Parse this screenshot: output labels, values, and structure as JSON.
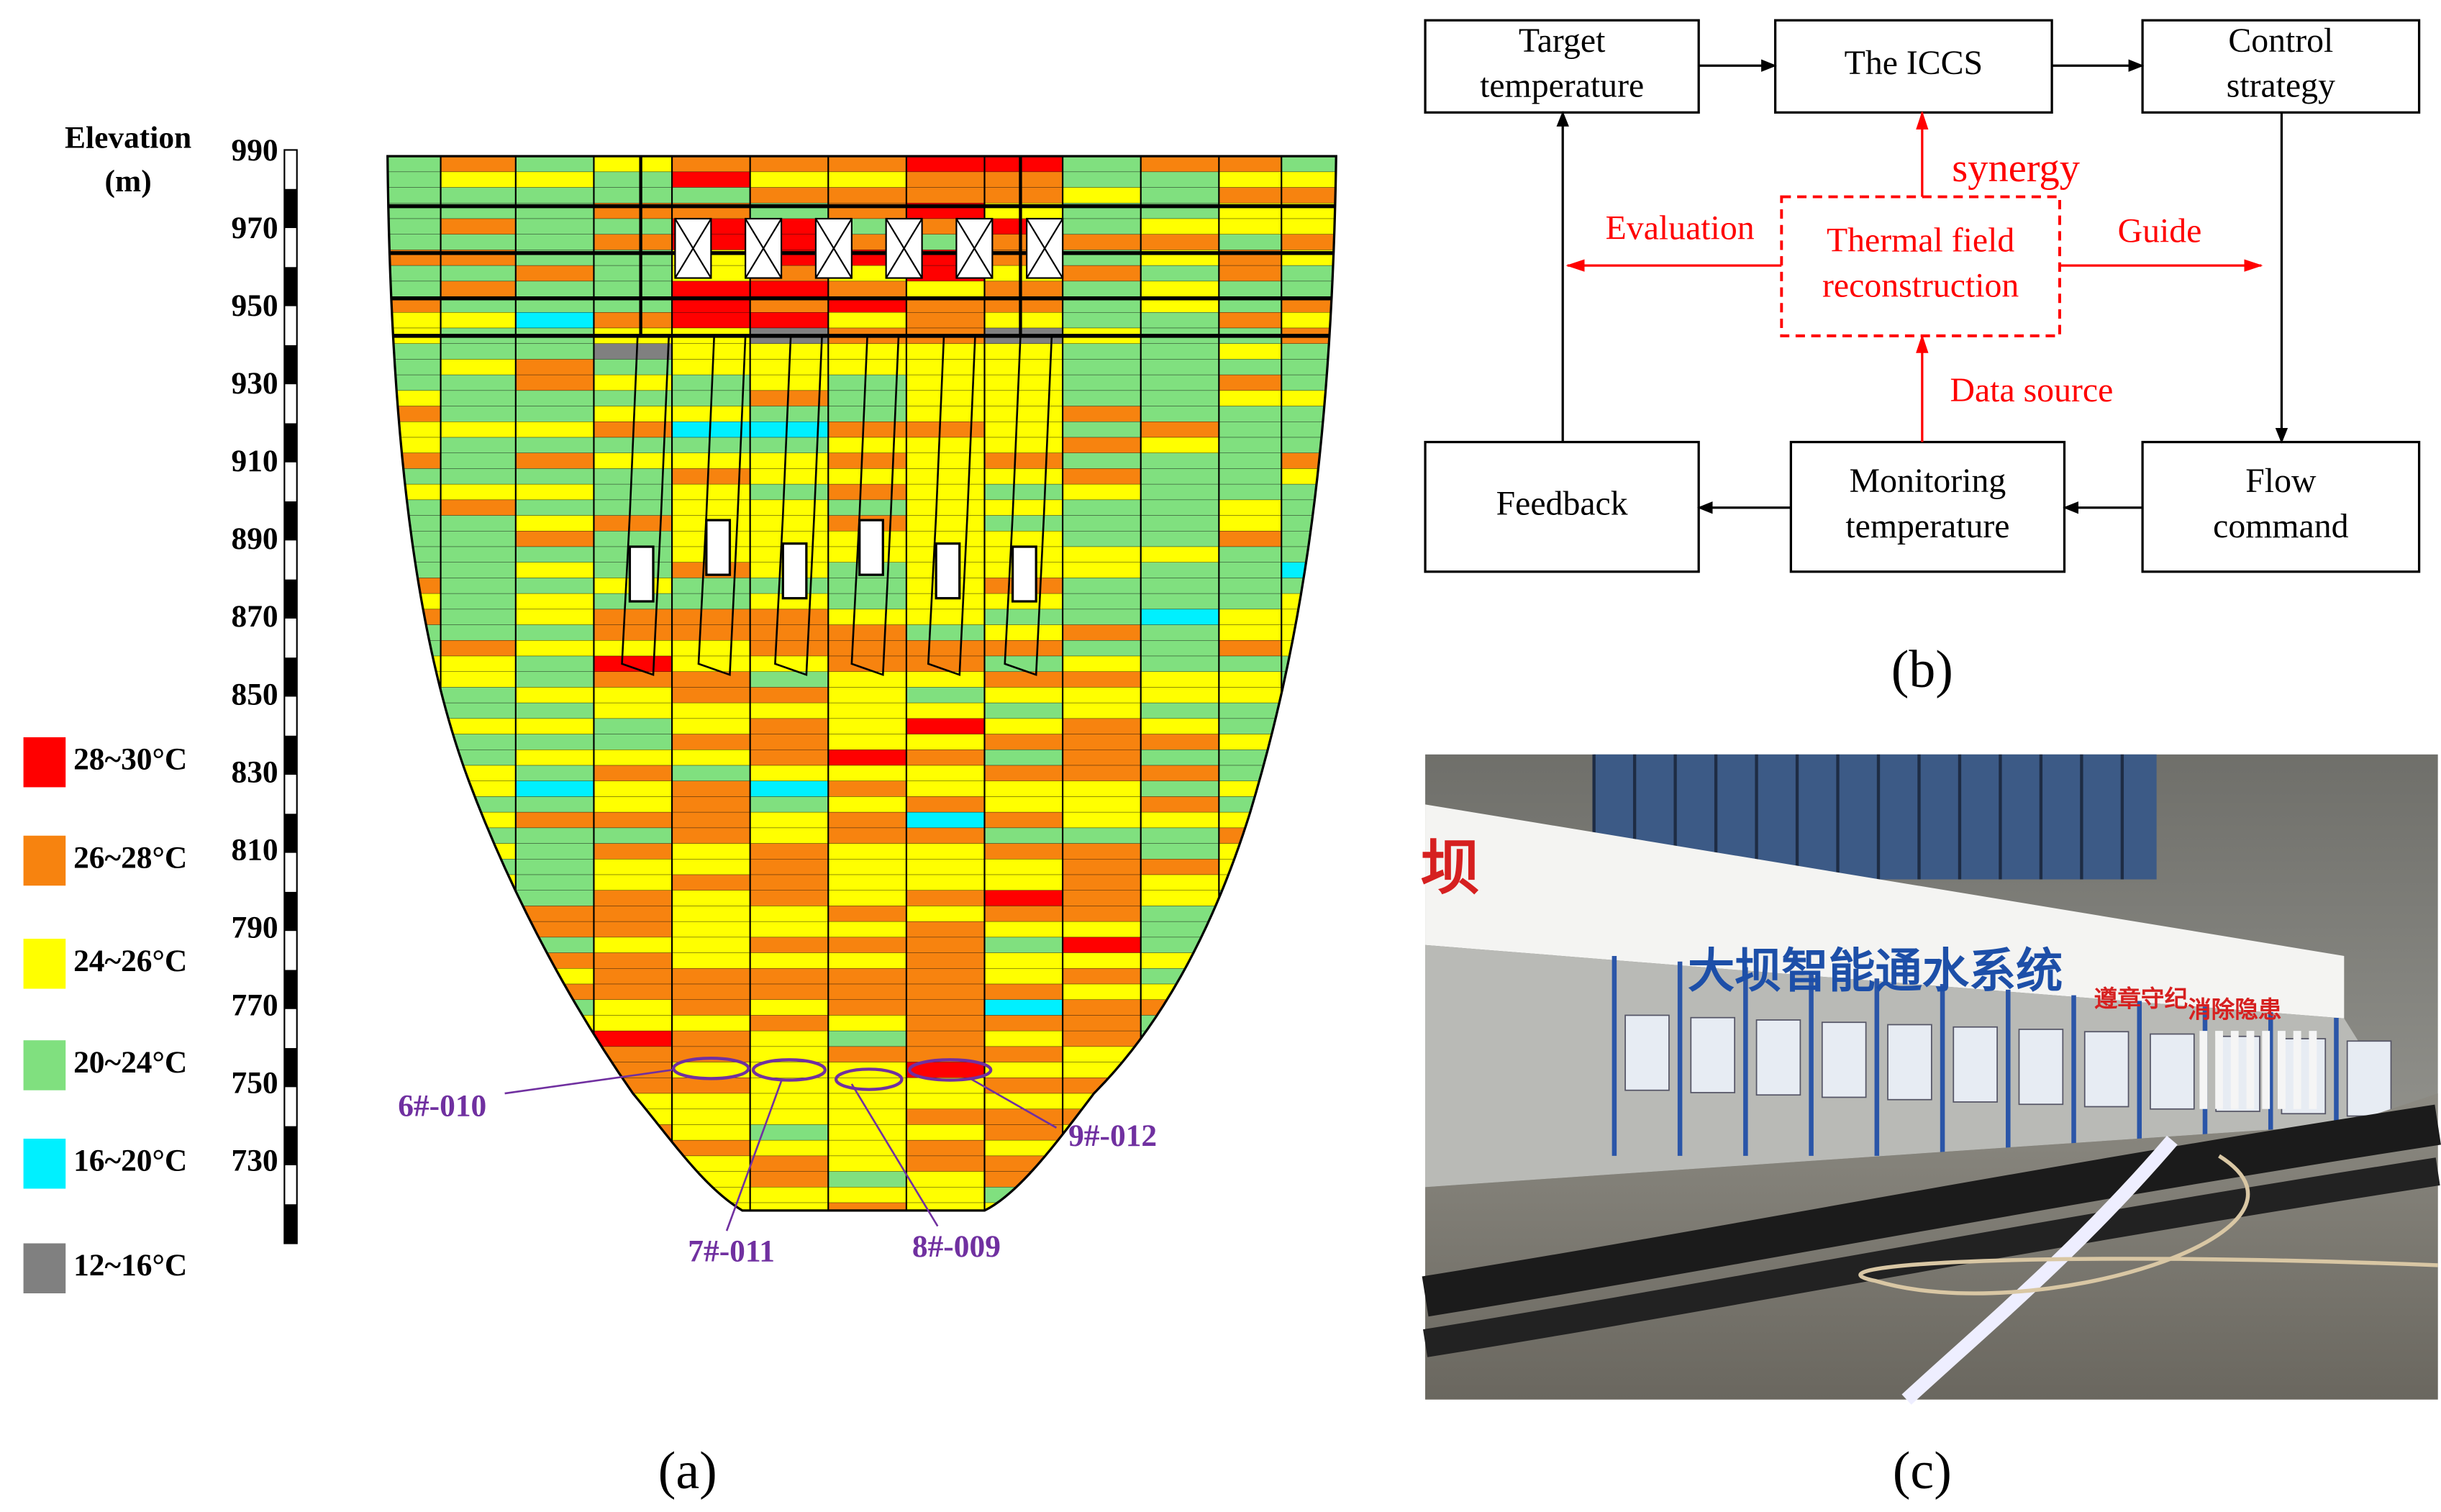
{
  "panels": {
    "a": "(a)",
    "b": "(b)",
    "c": "(c)"
  },
  "thermal_map": {
    "elevation_label": [
      "Elevation",
      "(m)"
    ],
    "elevation_ticks": [
      990,
      970,
      950,
      930,
      910,
      890,
      870,
      850,
      830,
      810,
      790,
      770,
      750,
      730
    ],
    "legend": [
      {
        "label": "28~30°C",
        "color": "#ff0000"
      },
      {
        "label": "26~28°C",
        "color": "#f7830f"
      },
      {
        "label": "24~26°C",
        "color": "#ffff00"
      },
      {
        "label": "20~24°C",
        "color": "#80e07f"
      },
      {
        "label": "16~20°C",
        "color": "#00f0ff"
      },
      {
        "label": "12~16°C",
        "color": "#808080"
      }
    ],
    "callouts": [
      "6#-010",
      "7#-011",
      "8#-009",
      "9#-012"
    ]
  },
  "flowchart": {
    "nodes": [
      {
        "lines": [
          "Target",
          "temperature"
        ]
      },
      {
        "lines": [
          "The ICCS"
        ]
      },
      {
        "lines": [
          "Control",
          "strategy"
        ]
      },
      {
        "lines": [
          "Feedback"
        ]
      },
      {
        "lines": [
          "Monitoring",
          "temperature"
        ]
      },
      {
        "lines": [
          "Flow",
          "command"
        ]
      },
      {
        "lines": [
          "Thermal field",
          "reconstruction"
        ]
      }
    ],
    "edge_labels": [
      "synergy",
      "Evaluation",
      "Guide",
      "Data source"
    ]
  },
  "photo": {
    "texts": [
      "坝",
      "大坝智能通水系统",
      "遵章守纪",
      "消除隐患"
    ]
  }
}
